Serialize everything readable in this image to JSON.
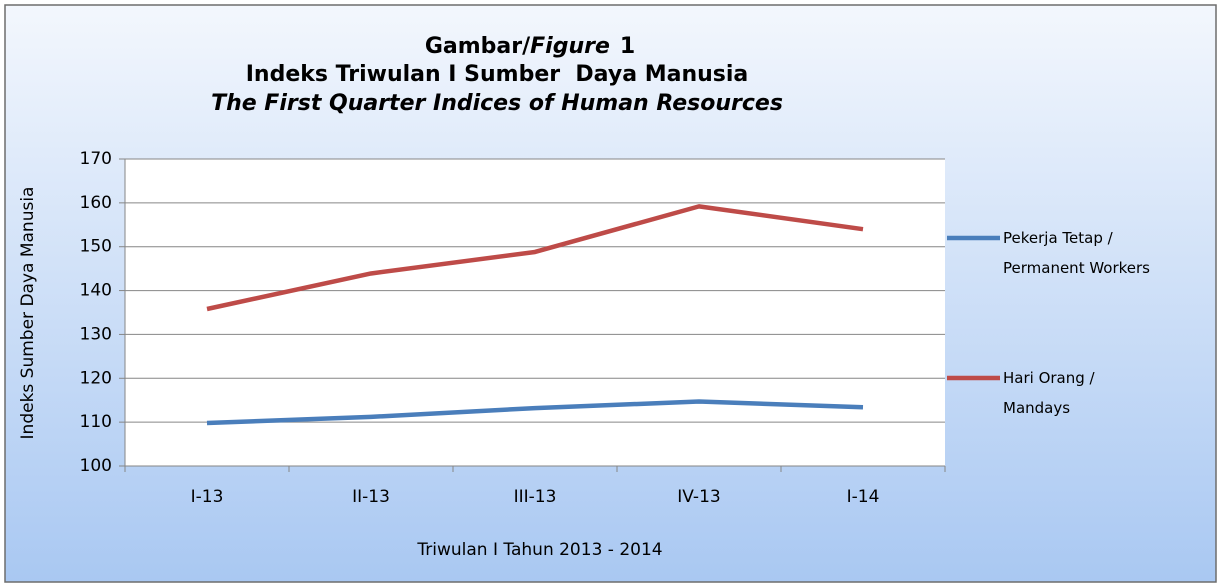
{
  "chart_data": {
    "type": "line",
    "title": [
      "Gambar/",
      "Figure",
      "1"
    ],
    "subtitle": [
      "Indeks Triwulan I Sumber  Daya Manusia",
      "The First Quarter Indices of Human Resources"
    ],
    "x_label": "Triwulan I Tahun 2013 - 2014",
    "y_label": "Indeks Sumber Daya Manusia",
    "categories": [
      "I-13",
      "II-13",
      "III-13",
      "IV-13",
      "I-14"
    ],
    "series": [
      {
        "name": "Pekerja Tetap / Permanent Workers",
        "color": "#4a7ebb",
        "values": [
          109.8,
          111.2,
          113.2,
          114.7,
          113.4
        ]
      },
      {
        "name": "Hari Orang / Mandays",
        "color": "#be4b48",
        "values": [
          135.8,
          143.9,
          148.8,
          159.2,
          154.0
        ]
      }
    ],
    "ylim": [
      100,
      170
    ],
    "yticks": [
      100,
      110,
      120,
      130,
      140,
      150,
      160,
      170
    ],
    "grid": true,
    "legend": "right"
  }
}
